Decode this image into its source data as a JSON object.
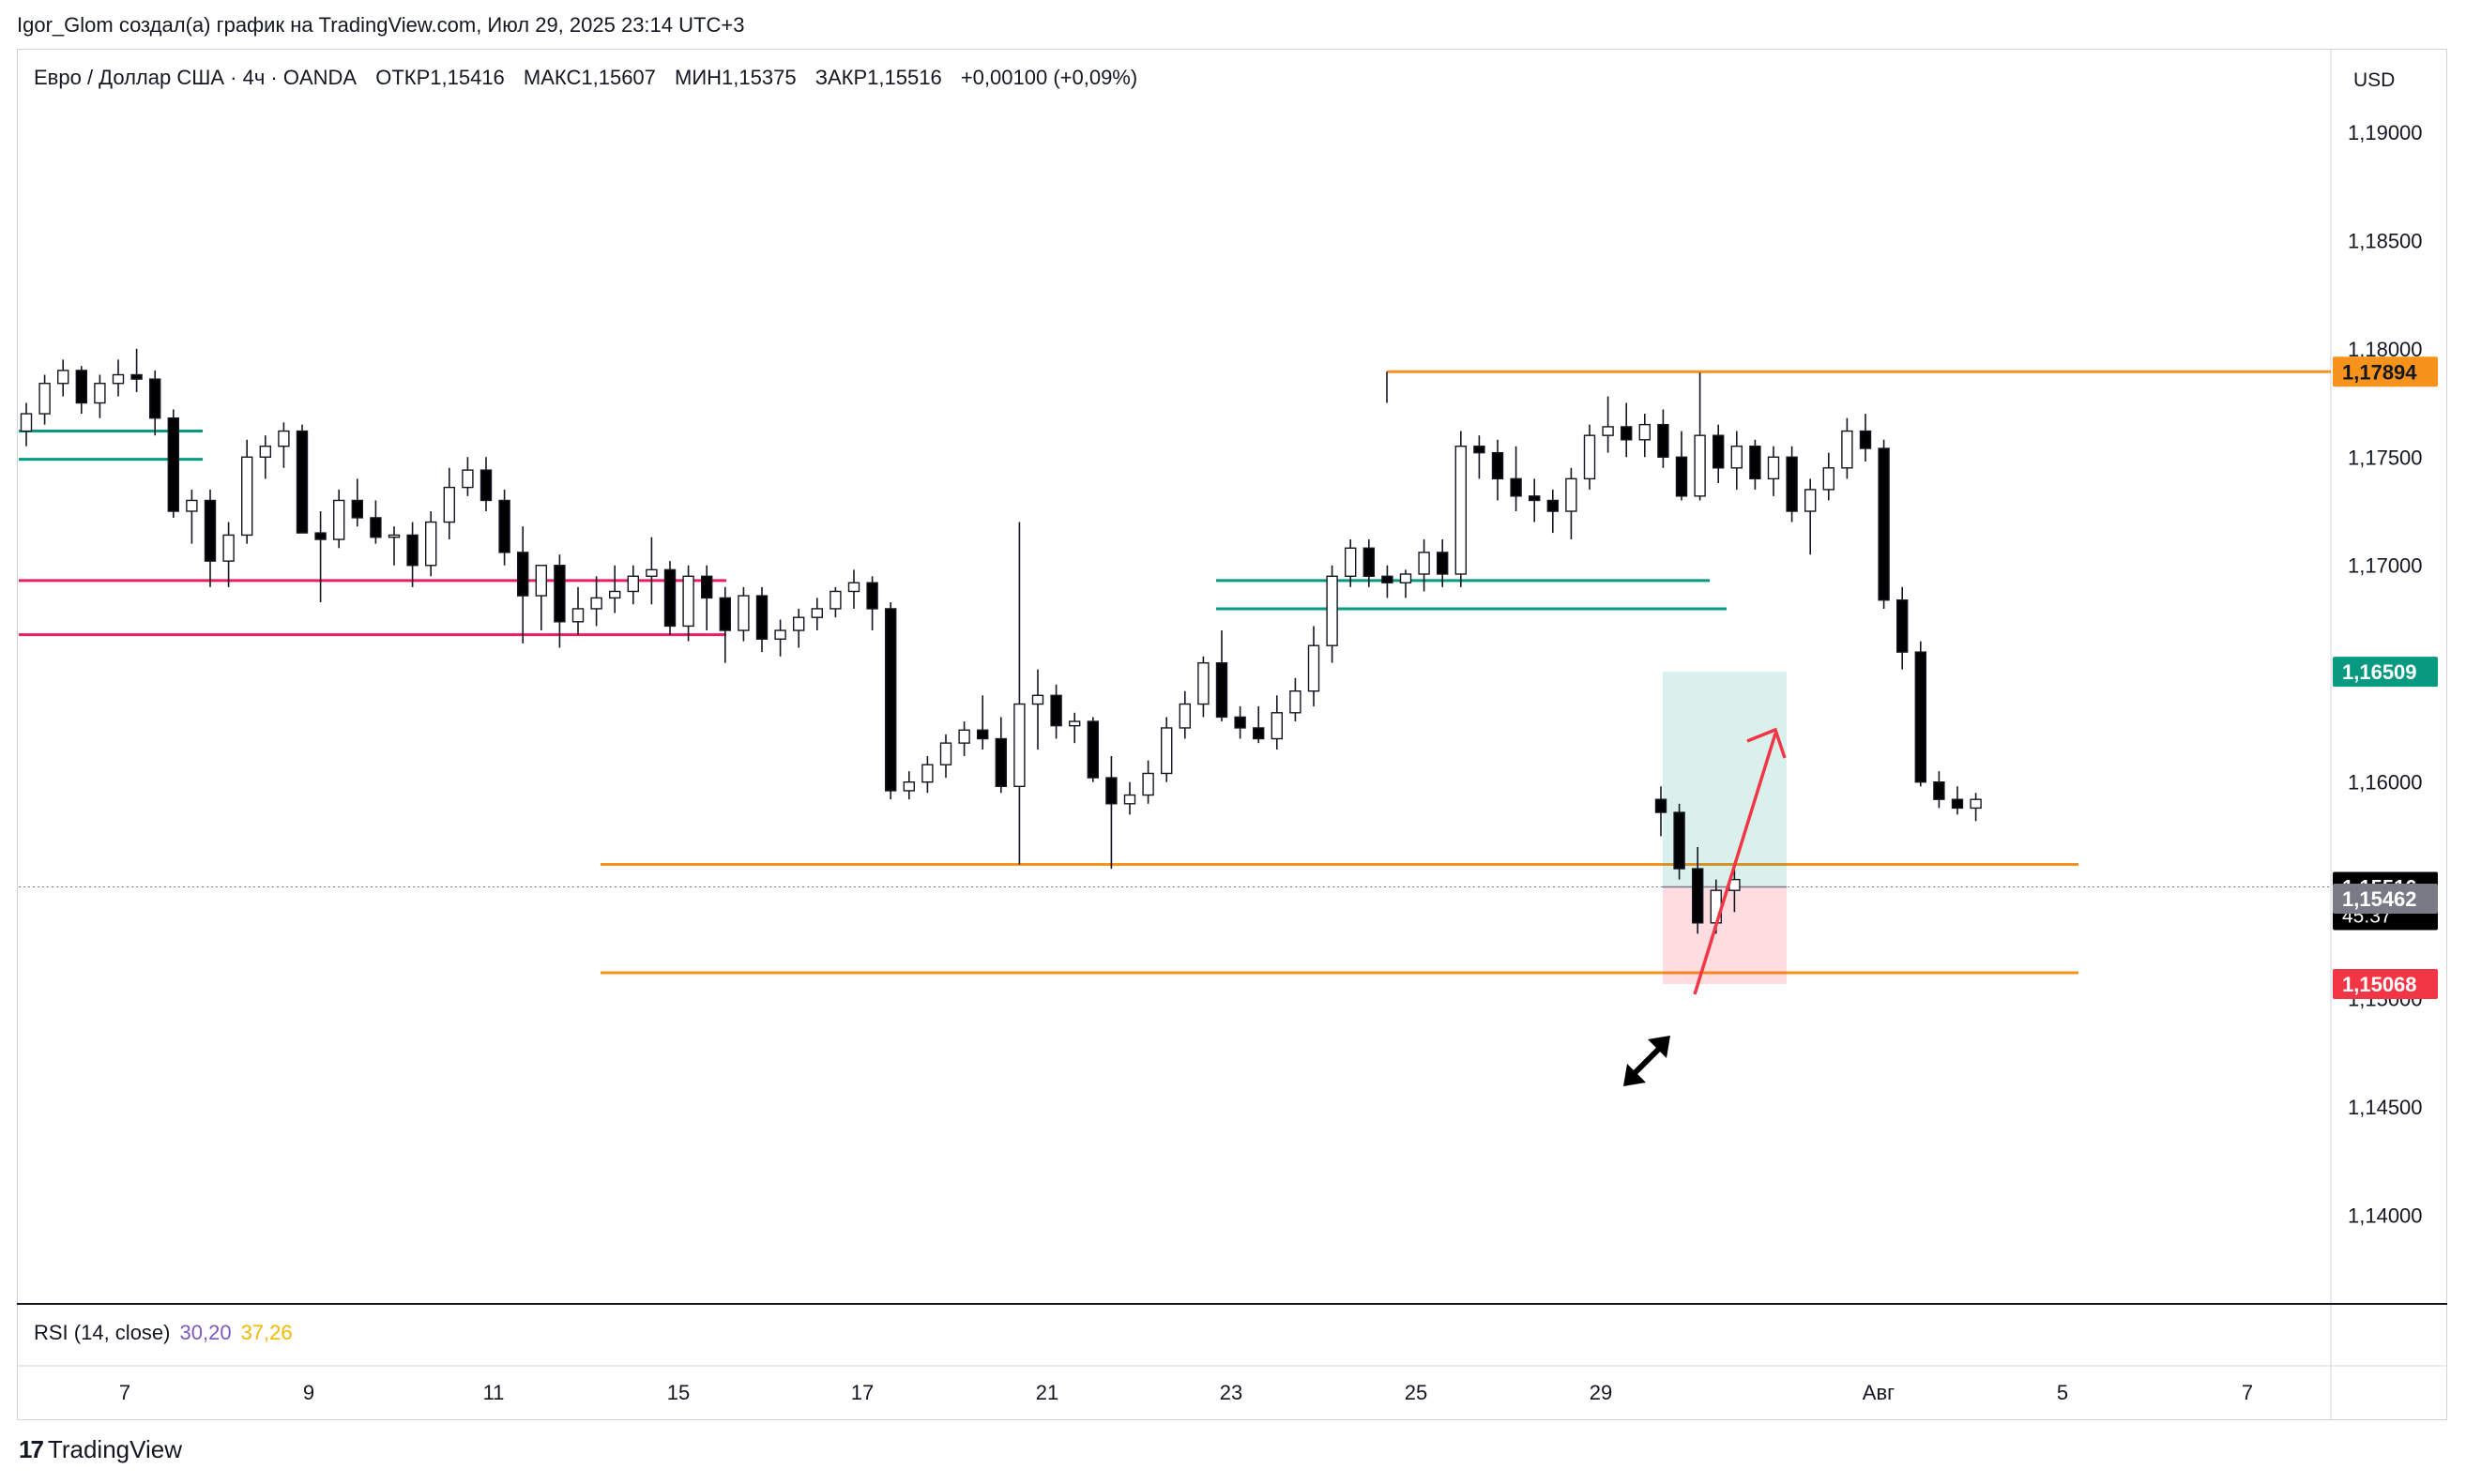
{
  "attribution": "Igor_Glom создал(а) график на TradingView.com, Июл 29, 2025 23:14 UTC+3",
  "header": {
    "symbol": "Евро / Доллар США · 4ч · OANDA",
    "open": "ОТКР1,15416",
    "high": "МАКС1,15607",
    "low": "МИН1,15375",
    "close": "ЗАКР1,15516",
    "change": "+0,00100 (+0,09%)"
  },
  "currency": "USD",
  "rsi": {
    "label": "RSI (14, close)",
    "value1": "30,20",
    "value2": "37,26"
  },
  "logo": {
    "mark": "17",
    "text": "TradingView"
  },
  "colors": {
    "up": "#ffffff",
    "down": "#000000",
    "orange": "#f7931a",
    "teal": "#089981",
    "crimson": "#e91e63",
    "red_arrow": "#f23645"
  },
  "chart_data": {
    "type": "candlestick",
    "title": "Евро / Доллар США · 4ч · OANDA",
    "ylim": [
      1.136,
      1.1935
    ],
    "y_ticks": [
      "1,19000",
      "1,18500",
      "1,18000",
      "1,17500",
      "1,17000",
      "1,16500",
      "1,16000",
      "1,15500",
      "1,15000",
      "1,14500",
      "1,14000"
    ],
    "x_ticks": [
      "7",
      "9",
      "11",
      "15",
      "17",
      "21",
      "23",
      "25",
      "29",
      "Авг",
      "5",
      "7"
    ],
    "candles": [
      [
        1.1762,
        1.1775,
        1.1755,
        1.177
      ],
      [
        1.177,
        1.1788,
        1.1765,
        1.1784
      ],
      [
        1.1784,
        1.1795,
        1.1778,
        1.179
      ],
      [
        1.179,
        1.1792,
        1.177,
        1.1775
      ],
      [
        1.1775,
        1.1788,
        1.1768,
        1.1784
      ],
      [
        1.1784,
        1.1795,
        1.1778,
        1.1788
      ],
      [
        1.1788,
        1.18,
        1.178,
        1.1786
      ],
      [
        1.1786,
        1.179,
        1.176,
        1.1768
      ],
      [
        1.1768,
        1.1772,
        1.1722,
        1.1725
      ],
      [
        1.1725,
        1.1735,
        1.171,
        1.173
      ],
      [
        1.173,
        1.1735,
        1.169,
        1.1702
      ],
      [
        1.1702,
        1.172,
        1.169,
        1.1714
      ],
      [
        1.1714,
        1.1758,
        1.171,
        1.175
      ],
      [
        1.175,
        1.176,
        1.174,
        1.1755
      ],
      [
        1.1755,
        1.1766,
        1.1745,
        1.1762
      ],
      [
        1.1762,
        1.1765,
        1.172,
        1.1715
      ],
      [
        1.1715,
        1.1725,
        1.1683,
        1.1712
      ],
      [
        1.1712,
        1.1735,
        1.1708,
        1.173
      ],
      [
        1.173,
        1.174,
        1.1718,
        1.1722
      ],
      [
        1.1722,
        1.173,
        1.171,
        1.1713
      ],
      [
        1.1713,
        1.1718,
        1.17,
        1.1714
      ],
      [
        1.1714,
        1.172,
        1.169,
        1.17
      ],
      [
        1.17,
        1.1725,
        1.1695,
        1.172
      ],
      [
        1.172,
        1.1745,
        1.1712,
        1.1736
      ],
      [
        1.1736,
        1.175,
        1.1732,
        1.1744
      ],
      [
        1.1744,
        1.175,
        1.1725,
        1.173
      ],
      [
        1.173,
        1.1735,
        1.17,
        1.1706
      ],
      [
        1.1706,
        1.1718,
        1.1664,
        1.1686
      ],
      [
        1.1686,
        1.17,
        1.167,
        1.17
      ],
      [
        1.17,
        1.1705,
        1.1662,
        1.1674
      ],
      [
        1.1674,
        1.169,
        1.1668,
        1.168
      ],
      [
        1.168,
        1.1695,
        1.1672,
        1.1685
      ],
      [
        1.1685,
        1.17,
        1.1678,
        1.1688
      ],
      [
        1.1688,
        1.17,
        1.1682,
        1.1695
      ],
      [
        1.1695,
        1.1713,
        1.1682,
        1.1698
      ],
      [
        1.1698,
        1.1702,
        1.1668,
        1.1672
      ],
      [
        1.1672,
        1.17,
        1.1665,
        1.1695
      ],
      [
        1.1695,
        1.17,
        1.167,
        1.1685
      ],
      [
        1.1685,
        1.169,
        1.1655,
        1.167
      ],
      [
        1.167,
        1.169,
        1.1665,
        1.1686
      ],
      [
        1.1686,
        1.169,
        1.166,
        1.1666
      ],
      [
        1.1666,
        1.1675,
        1.1658,
        1.167
      ],
      [
        1.167,
        1.168,
        1.1662,
        1.1676
      ],
      [
        1.1676,
        1.1685,
        1.167,
        1.168
      ],
      [
        1.168,
        1.169,
        1.1676,
        1.1688
      ],
      [
        1.1688,
        1.1698,
        1.168,
        1.1692
      ],
      [
        1.1692,
        1.1695,
        1.167,
        1.168
      ],
      [
        1.168,
        1.1683,
        1.1592,
        1.1596
      ],
      [
        1.1596,
        1.1605,
        1.1592,
        1.16
      ],
      [
        1.16,
        1.1612,
        1.1595,
        1.1608
      ],
      [
        1.1608,
        1.1622,
        1.1602,
        1.1618
      ],
      [
        1.1618,
        1.1628,
        1.1612,
        1.1624
      ],
      [
        1.1624,
        1.164,
        1.1615,
        1.162
      ],
      [
        1.162,
        1.163,
        1.1595,
        1.1598
      ],
      [
        1.1598,
        1.172,
        1.1562,
        1.1636
      ],
      [
        1.1636,
        1.1652,
        1.1615,
        1.164
      ],
      [
        1.164,
        1.1645,
        1.162,
        1.1626
      ],
      [
        1.1626,
        1.1632,
        1.1618,
        1.1628
      ],
      [
        1.1628,
        1.163,
        1.16,
        1.1602
      ],
      [
        1.1602,
        1.1612,
        1.156,
        1.159
      ],
      [
        1.159,
        1.16,
        1.1585,
        1.1594
      ],
      [
        1.1594,
        1.161,
        1.159,
        1.1604
      ],
      [
        1.1604,
        1.163,
        1.16,
        1.1625
      ],
      [
        1.1625,
        1.1642,
        1.162,
        1.1636
      ],
      [
        1.1636,
        1.1658,
        1.163,
        1.1655
      ],
      [
        1.1655,
        1.167,
        1.1628,
        1.163
      ],
      [
        1.163,
        1.1635,
        1.162,
        1.1625
      ],
      [
        1.1625,
        1.1635,
        1.1618,
        1.162
      ],
      [
        1.162,
        1.164,
        1.1615,
        1.1632
      ],
      [
        1.1632,
        1.1648,
        1.1628,
        1.1642
      ],
      [
        1.1642,
        1.1672,
        1.1635,
        1.1663
      ],
      [
        1.1663,
        1.17,
        1.1655,
        1.1695
      ],
      [
        1.1695,
        1.1712,
        1.169,
        1.1708
      ],
      [
        1.1708,
        1.1712,
        1.169,
        1.1695
      ],
      [
        1.1695,
        1.17,
        1.1685,
        1.1692
      ],
      [
        1.1692,
        1.1698,
        1.1685,
        1.1696
      ],
      [
        1.1696,
        1.1712,
        1.1688,
        1.1706
      ],
      [
        1.1706,
        1.1712,
        1.169,
        1.1696
      ],
      [
        1.1696,
        1.1762,
        1.169,
        1.1755
      ],
      [
        1.1755,
        1.176,
        1.174,
        1.1752
      ],
      [
        1.1752,
        1.1758,
        1.173,
        1.174
      ],
      [
        1.174,
        1.1755,
        1.1725,
        1.1732
      ],
      [
        1.1732,
        1.174,
        1.172,
        1.173
      ],
      [
        1.173,
        1.1735,
        1.1715,
        1.1725
      ],
      [
        1.1725,
        1.1745,
        1.1712,
        1.174
      ],
      [
        1.174,
        1.1765,
        1.1735,
        1.176
      ],
      [
        1.176,
        1.1778,
        1.1752,
        1.1764
      ],
      [
        1.1764,
        1.1775,
        1.175,
        1.1758
      ],
      [
        1.1758,
        1.177,
        1.175,
        1.1765
      ],
      [
        1.1765,
        1.1772,
        1.1745,
        1.175
      ],
      [
        1.175,
        1.1762,
        1.173,
        1.1732
      ],
      [
        1.1732,
        1.1789,
        1.173,
        1.176
      ],
      [
        1.176,
        1.1765,
        1.1738,
        1.1745
      ],
      [
        1.1745,
        1.1762,
        1.1735,
        1.1755
      ],
      [
        1.1755,
        1.1758,
        1.1735,
        1.174
      ],
      [
        1.174,
        1.1755,
        1.1732,
        1.175
      ],
      [
        1.175,
        1.1755,
        1.172,
        1.1725
      ],
      [
        1.1725,
        1.174,
        1.1705,
        1.1735
      ],
      [
        1.1735,
        1.1752,
        1.173,
        1.1745
      ],
      [
        1.1745,
        1.1768,
        1.174,
        1.1762
      ],
      [
        1.1762,
        1.177,
        1.1748,
        1.1754
      ],
      [
        1.1754,
        1.1758,
        1.168,
        1.1684
      ],
      [
        1.1684,
        1.169,
        1.1652,
        1.166
      ],
      [
        1.166,
        1.1665,
        1.1598,
        1.16
      ],
      [
        1.16,
        1.1605,
        1.1588,
        1.1592
      ],
      [
        1.1592,
        1.1598,
        1.1585,
        1.1588
      ],
      [
        1.1588,
        1.1595,
        1.1582,
        1.1592
      ],
      [
        1.1592,
        1.1598,
        1.1575,
        1.1586
      ],
      [
        1.1586,
        1.159,
        1.1555,
        1.156
      ],
      [
        1.156,
        1.157,
        1.153,
        1.1535
      ],
      [
        1.1535,
        1.1555,
        1.153,
        1.155
      ],
      [
        1.155,
        1.156,
        1.154,
        1.1555
      ]
    ],
    "levels": [
      {
        "price": 1.17894,
        "color": "orange"
      },
      {
        "price": 1.1562,
        "color": "orange"
      },
      {
        "price": 1.1512,
        "color": "orange"
      },
      {
        "price": 1.1762,
        "color": "teal"
      },
      {
        "price": 1.1749,
        "color": "teal"
      },
      {
        "price": 1.1693,
        "color": "teal"
      },
      {
        "price": 1.168,
        "color": "teal"
      },
      {
        "price": 1.1693,
        "color": "crimson"
      },
      {
        "price": 1.1668,
        "color": "crimson"
      }
    ],
    "position": {
      "entry": 1.15516,
      "target": 1.16509,
      "stop": 1.15068
    },
    "price_labels": [
      {
        "text": "1,17894",
        "price": 1.17894,
        "style": "orange"
      },
      {
        "text": "1,16509",
        "price": 1.16509,
        "style": "teal"
      },
      {
        "text": "1,15516",
        "price": 1.15516,
        "style": "black",
        "sub": "45:37"
      },
      {
        "text": "1,15462",
        "price": 1.15462,
        "style": "gray"
      },
      {
        "text": "1,15068",
        "price": 1.15068,
        "style": "red"
      }
    ]
  }
}
